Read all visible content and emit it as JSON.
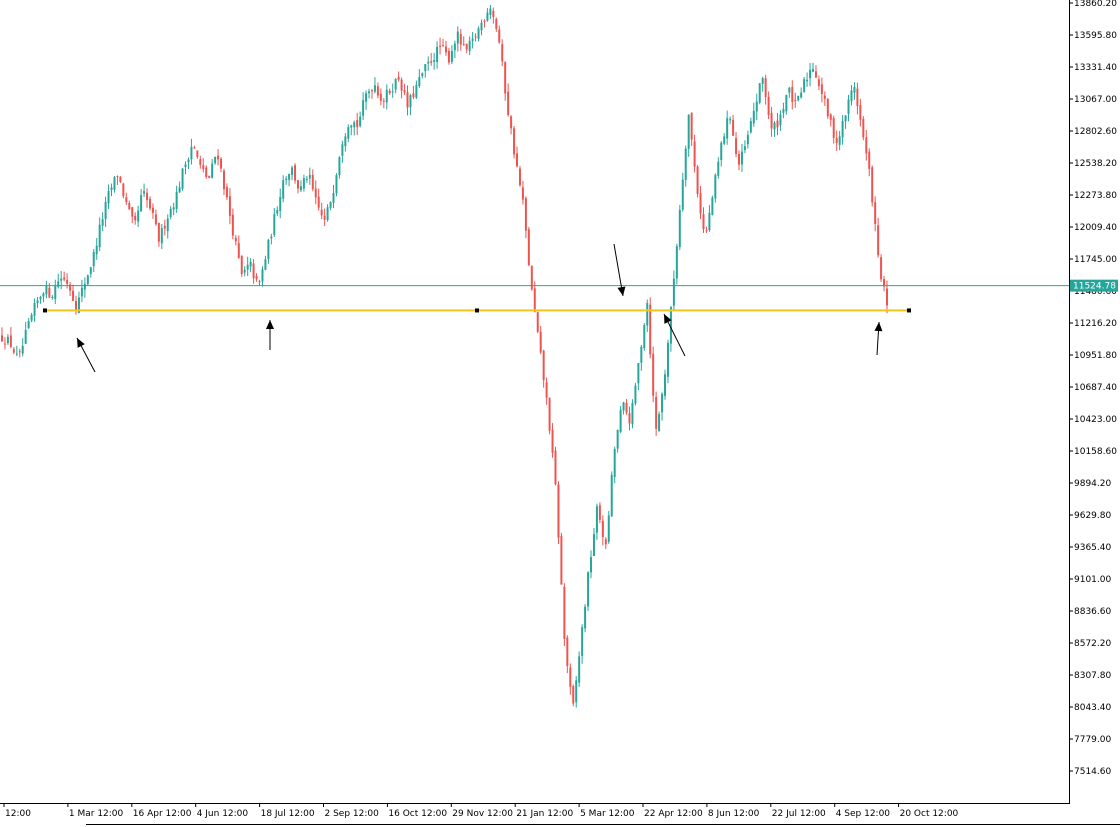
{
  "chart_data": {
    "type": "candlestick",
    "colors": {
      "up_candle": "#26a69a",
      "down_candle": "#ef5350",
      "current_price_line": "#26a69a",
      "support_line": "#f5c518",
      "axis": "#000000",
      "arrow": "#000000"
    },
    "y_axis": {
      "range": [
        7320,
        13900
      ],
      "tick_labels": [
        "13860.20",
        "13595.80",
        "13331.40",
        "13067.00",
        "12802.60",
        "12538.20",
        "12273.80",
        "12009.40",
        "11745.00",
        "11480.60",
        "11216.20",
        "10951.80",
        "10687.40",
        "10423.00",
        "10158.60",
        "9894.20",
        "9629.80",
        "9365.40",
        "9101.00",
        "8836.60",
        "8572.20",
        "8307.80",
        "8043.40",
        "7779.00",
        "7514.60"
      ]
    },
    "x_axis": {
      "tick_labels": [
        "12:00",
        "1 Mar 12:00",
        "16 Apr 12:00",
        "4 Jun 12:00",
        "18 Jul 12:00",
        "2 Sep 12:00",
        "16 Oct 12:00",
        "29 Nov 12:00",
        "21 Jan 12:00",
        "5 Mar 12:00",
        "22 Apr 12:00",
        "8 Jun 12:00",
        "22 Jul 12:00",
        "4 Sep 12:00",
        "20 Oct 12:00"
      ]
    },
    "current_price": {
      "value": 11524.78,
      "label": "11524.78"
    },
    "support_level": 11320,
    "price_path": [
      11100,
      11050,
      10900,
      11150,
      11350,
      11500,
      11450,
      11600,
      11550,
      11350,
      11550,
      11750,
      12050,
      12300,
      12450,
      12200,
      12000,
      12300,
      12150,
      11900,
      12100,
      12250,
      12500,
      12700,
      12500,
      12400,
      12650,
      12300,
      11950,
      11600,
      11700,
      11500,
      11800,
      12100,
      12400,
      12500,
      12300,
      12450,
      12200,
      12050,
      12300,
      12700,
      12900,
      12850,
      13100,
      13200,
      13050,
      13150,
      13250,
      13000,
      13150,
      13300,
      13400,
      13500,
      13400,
      13600,
      13450,
      13550,
      13700,
      13850,
      13600,
      13050,
      12600,
      12200,
      11500,
      11000,
      10500,
      9800,
      8600,
      8000,
      8600,
      9200,
      9700,
      9350,
      10150,
      10550,
      10400,
      10900,
      11400,
      10300,
      10700,
      11400,
      12200,
      12950,
      12350,
      11900,
      12300,
      12700,
      12950,
      12500,
      12700,
      13000,
      13250,
      12800,
      12900,
      13150,
      13000,
      13200,
      13350,
      13150,
      12900,
      12700,
      12950,
      13200,
      12800,
      12400,
      11700,
      11350
    ],
    "annotations": [
      {
        "type": "arrow",
        "target": "first touch of support (early March)"
      },
      {
        "type": "arrow",
        "target": "bounce off support (July)"
      },
      {
        "type": "arrow",
        "target": "breakdown through support (March, second year)"
      },
      {
        "type": "arrow",
        "target": "reclaim of support (late April)"
      },
      {
        "type": "arrow",
        "target": "retest of support (late October)"
      }
    ]
  }
}
